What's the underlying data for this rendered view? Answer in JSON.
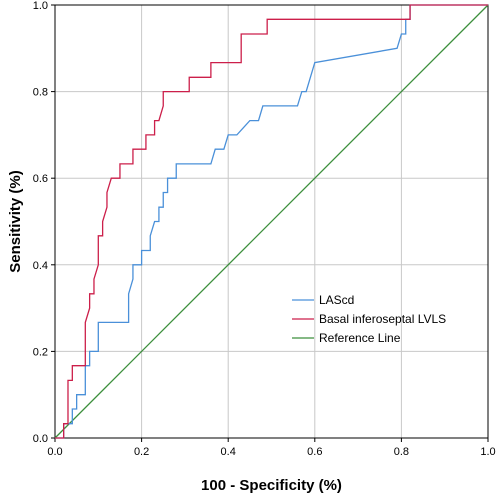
{
  "chart_data": {
    "type": "line",
    "title": "",
    "xlabel": "100 - Specificity (%)",
    "ylabel": "Sensitivity (%)",
    "xlim": [
      0,
      1
    ],
    "ylim": [
      0,
      1
    ],
    "x_ticks": [
      "0.0",
      "0.2",
      "0.4",
      "0.6",
      "0.8",
      "1.0"
    ],
    "y_ticks": [
      "0.0",
      "0.2",
      "0.4",
      "0.6",
      "0.8",
      "1.0"
    ],
    "grid": true,
    "legend_position": "bottom-right",
    "series": [
      {
        "name": "LAScd",
        "color": "#4a90d9",
        "points": [
          [
            0,
            0
          ],
          [
            0.02,
            0
          ],
          [
            0.02,
            0.033
          ],
          [
            0.04,
            0.033
          ],
          [
            0.04,
            0.067
          ],
          [
            0.05,
            0.067
          ],
          [
            0.05,
            0.1
          ],
          [
            0.07,
            0.1
          ],
          [
            0.07,
            0.167
          ],
          [
            0.08,
            0.167
          ],
          [
            0.08,
            0.2
          ],
          [
            0.1,
            0.2
          ],
          [
            0.1,
            0.267
          ],
          [
            0.17,
            0.267
          ],
          [
            0.17,
            0.333
          ],
          [
            0.18,
            0.367
          ],
          [
            0.18,
            0.4
          ],
          [
            0.2,
            0.4
          ],
          [
            0.2,
            0.433
          ],
          [
            0.22,
            0.433
          ],
          [
            0.22,
            0.467
          ],
          [
            0.23,
            0.5
          ],
          [
            0.24,
            0.5
          ],
          [
            0.24,
            0.533
          ],
          [
            0.25,
            0.533
          ],
          [
            0.25,
            0.567
          ],
          [
            0.26,
            0.567
          ],
          [
            0.26,
            0.6
          ],
          [
            0.28,
            0.6
          ],
          [
            0.28,
            0.633
          ],
          [
            0.36,
            0.633
          ],
          [
            0.37,
            0.667
          ],
          [
            0.39,
            0.667
          ],
          [
            0.4,
            0.7
          ],
          [
            0.42,
            0.7
          ],
          [
            0.45,
            0.733
          ],
          [
            0.47,
            0.733
          ],
          [
            0.48,
            0.767
          ],
          [
            0.56,
            0.767
          ],
          [
            0.57,
            0.8
          ],
          [
            0.58,
            0.8
          ],
          [
            0.6,
            0.867
          ],
          [
            0.79,
            0.9
          ],
          [
            0.8,
            0.933
          ],
          [
            0.81,
            0.933
          ],
          [
            0.81,
            0.967
          ],
          [
            0.82,
            0.967
          ],
          [
            0.82,
            1
          ],
          [
            1,
            1
          ]
        ]
      },
      {
        "name": "Basal inferoseptal LVLS",
        "color": "#cc1f4a",
        "points": [
          [
            0,
            0
          ],
          [
            0.02,
            0
          ],
          [
            0.02,
            0.033
          ],
          [
            0.03,
            0.033
          ],
          [
            0.03,
            0.133
          ],
          [
            0.04,
            0.133
          ],
          [
            0.04,
            0.167
          ],
          [
            0.07,
            0.167
          ],
          [
            0.07,
            0.267
          ],
          [
            0.08,
            0.3
          ],
          [
            0.08,
            0.333
          ],
          [
            0.09,
            0.333
          ],
          [
            0.09,
            0.367
          ],
          [
            0.1,
            0.4
          ],
          [
            0.1,
            0.467
          ],
          [
            0.11,
            0.467
          ],
          [
            0.11,
            0.5
          ],
          [
            0.12,
            0.533
          ],
          [
            0.12,
            0.567
          ],
          [
            0.13,
            0.6
          ],
          [
            0.15,
            0.6
          ],
          [
            0.15,
            0.633
          ],
          [
            0.18,
            0.633
          ],
          [
            0.18,
            0.667
          ],
          [
            0.21,
            0.667
          ],
          [
            0.21,
            0.7
          ],
          [
            0.23,
            0.7
          ],
          [
            0.23,
            0.733
          ],
          [
            0.24,
            0.733
          ],
          [
            0.25,
            0.767
          ],
          [
            0.25,
            0.8
          ],
          [
            0.31,
            0.8
          ],
          [
            0.31,
            0.833
          ],
          [
            0.36,
            0.833
          ],
          [
            0.36,
            0.867
          ],
          [
            0.43,
            0.867
          ],
          [
            0.43,
            0.9
          ],
          [
            0.43,
            0.933
          ],
          [
            0.49,
            0.933
          ],
          [
            0.49,
            0.967
          ],
          [
            0.82,
            0.967
          ],
          [
            0.82,
            1
          ],
          [
            1,
            1
          ]
        ]
      },
      {
        "name": "Reference Line",
        "color": "#3c8f3c",
        "points": [
          [
            0,
            0
          ],
          [
            1,
            1
          ]
        ]
      }
    ]
  }
}
